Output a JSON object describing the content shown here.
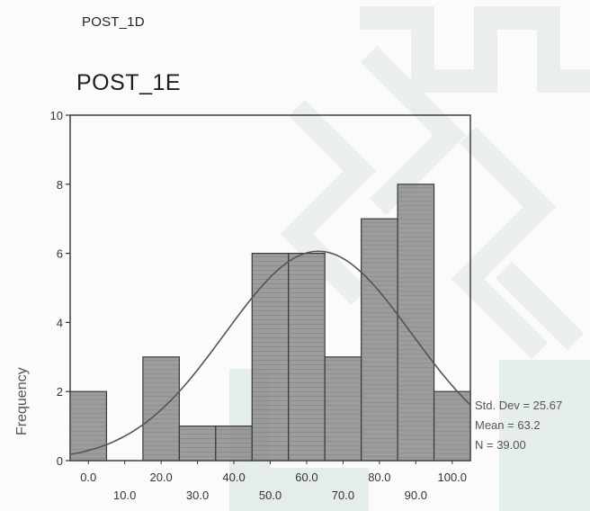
{
  "header": {
    "previous_label": "POST_1D",
    "title": "POST_1E"
  },
  "stats": {
    "std_dev": "Std. Dev = 25.67",
    "mean": "Mean = 63.2",
    "n": "N = 39.00"
  },
  "colors": {
    "bar_fill": "#8c8c8c",
    "curve": "#555555",
    "watermark": "#e7ece9",
    "watermark_green": "#dbe9e2"
  },
  "chart_data": {
    "type": "bar",
    "ylabel": "Frequency",
    "xlabel": "",
    "ylim": [
      0,
      10
    ],
    "xlim": [
      -5,
      105
    ],
    "y_ticks": [
      "0",
      "2",
      "4",
      "6",
      "8",
      "10"
    ],
    "x_tick_labels_upper": [
      "0.0",
      "20.0",
      "40.0",
      "60.0",
      "80.0",
      "100.0"
    ],
    "x_tick_labels_lower": [
      "10.0",
      "30.0",
      "50.0",
      "70.0",
      "90.0"
    ],
    "bins": [
      {
        "center": 0,
        "value": 2
      },
      {
        "center": 10,
        "value": 0
      },
      {
        "center": 20,
        "value": 3
      },
      {
        "center": 30,
        "value": 1
      },
      {
        "center": 40,
        "value": 1
      },
      {
        "center": 50,
        "value": 6
      },
      {
        "center": 60,
        "value": 6
      },
      {
        "center": 70,
        "value": 3
      },
      {
        "center": 80,
        "value": 7
      },
      {
        "center": 90,
        "value": 8
      },
      {
        "center": 100,
        "value": 2
      }
    ],
    "normal_curve": {
      "mean": 63.2,
      "std_dev": 25.67,
      "n": 39,
      "bin_width": 10
    }
  }
}
